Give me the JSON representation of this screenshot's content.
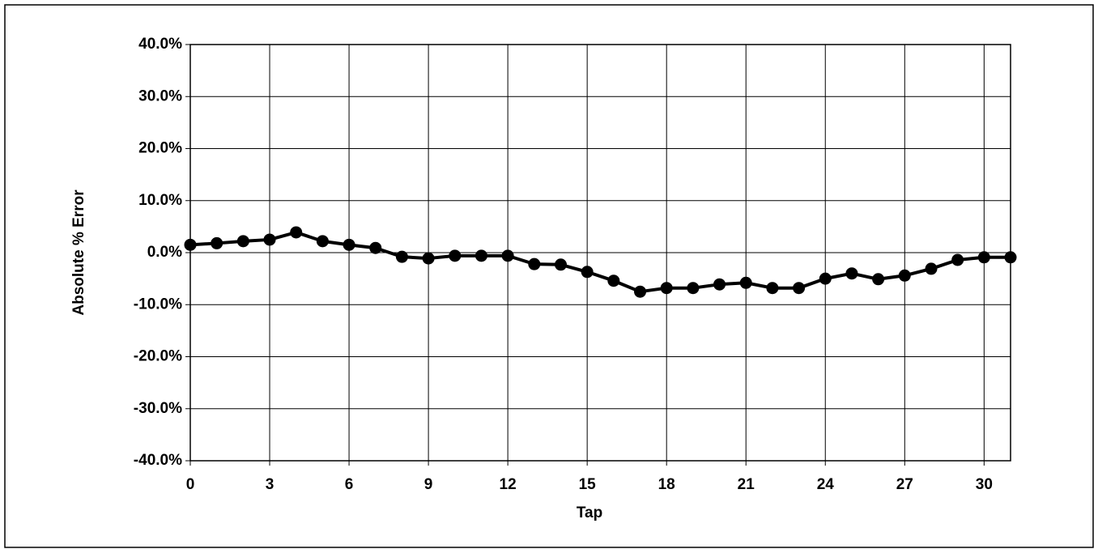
{
  "chart_data": {
    "type": "line",
    "xlabel": "Tap",
    "ylabel": "Absolute % Error",
    "x": [
      0,
      1,
      2,
      3,
      4,
      5,
      6,
      7,
      8,
      9,
      10,
      11,
      12,
      13,
      14,
      15,
      16,
      17,
      18,
      19,
      20,
      21,
      22,
      23,
      24,
      25,
      26,
      27,
      28,
      29,
      30,
      31
    ],
    "series": [
      {
        "color": "#000000",
        "values": [
          1.5,
          1.8,
          2.2,
          2.5,
          3.9,
          2.2,
          1.5,
          0.9,
          -0.8,
          -1.1,
          -0.6,
          -0.6,
          -0.6,
          -2.2,
          -2.3,
          -3.7,
          -5.4,
          -7.5,
          -6.8,
          -6.8,
          -6.1,
          -5.8,
          -6.8,
          -6.8,
          -5.0,
          -4.0,
          -5.1,
          -4.4,
          -3.1,
          -1.4,
          -0.9,
          -0.9
        ]
      }
    ],
    "xlim": [
      0,
      31
    ],
    "xticks": [
      0,
      3,
      6,
      9,
      12,
      15,
      18,
      21,
      24,
      27,
      30
    ],
    "ylim": [
      -40,
      40
    ],
    "yticks": [
      {
        "value": -40,
        "label": "-40.0%"
      },
      {
        "value": -30,
        "label": "-30.0%"
      },
      {
        "value": -20,
        "label": "-20.0%"
      },
      {
        "value": -10,
        "label": "-10.0%"
      },
      {
        "value": 0,
        "label": "0.0%"
      },
      {
        "value": 10,
        "label": "10.0%"
      },
      {
        "value": 20,
        "label": "20.0%"
      },
      {
        "value": 30,
        "label": "30.0%"
      },
      {
        "value": 40,
        "label": "40.0%"
      }
    ],
    "grid": true
  }
}
